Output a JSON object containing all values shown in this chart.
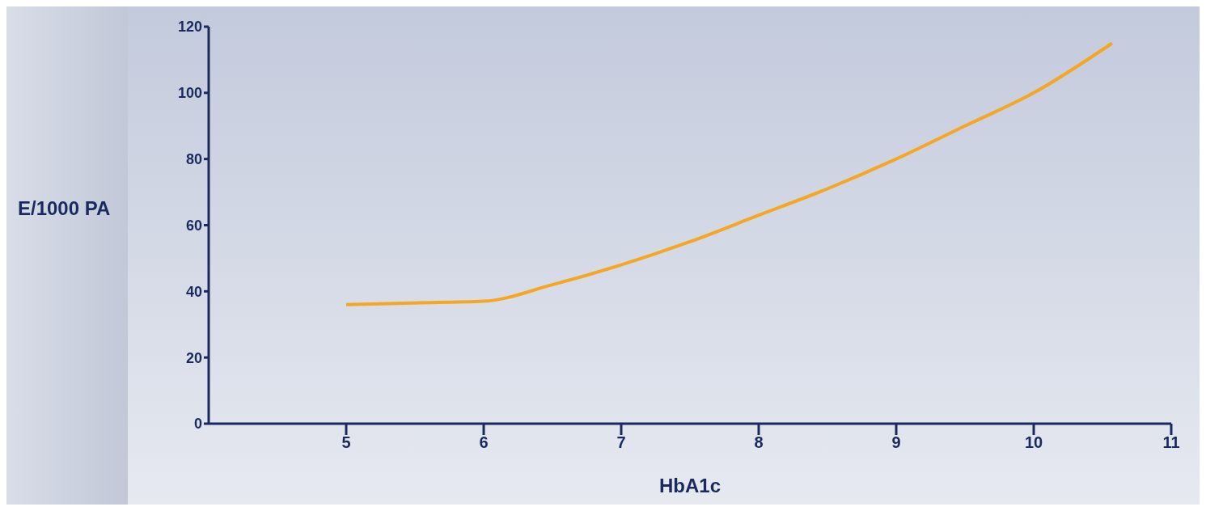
{
  "chart_data": {
    "type": "line",
    "xlabel": "HbA1c",
    "ylabel": "E/1000 PA",
    "x": [
      5,
      5.5,
      6,
      6.5,
      7,
      7.5,
      8,
      8.5,
      9,
      9.5,
      10,
      10.57
    ],
    "series": [
      {
        "color": "#f5a623",
        "values": [
          36,
          36.5,
          37,
          42,
          48,
          55,
          63,
          71,
          80,
          90,
          100,
          115
        ]
      }
    ],
    "xlim": [
      4,
      11
    ],
    "xticks": [
      5,
      6,
      7,
      8,
      9,
      10,
      11
    ],
    "ylim": [
      0,
      120
    ],
    "yticks": [
      0,
      20,
      40,
      60,
      80,
      100,
      120
    ],
    "grid": false,
    "legend": false,
    "marker": "none",
    "line_style": "solid"
  }
}
